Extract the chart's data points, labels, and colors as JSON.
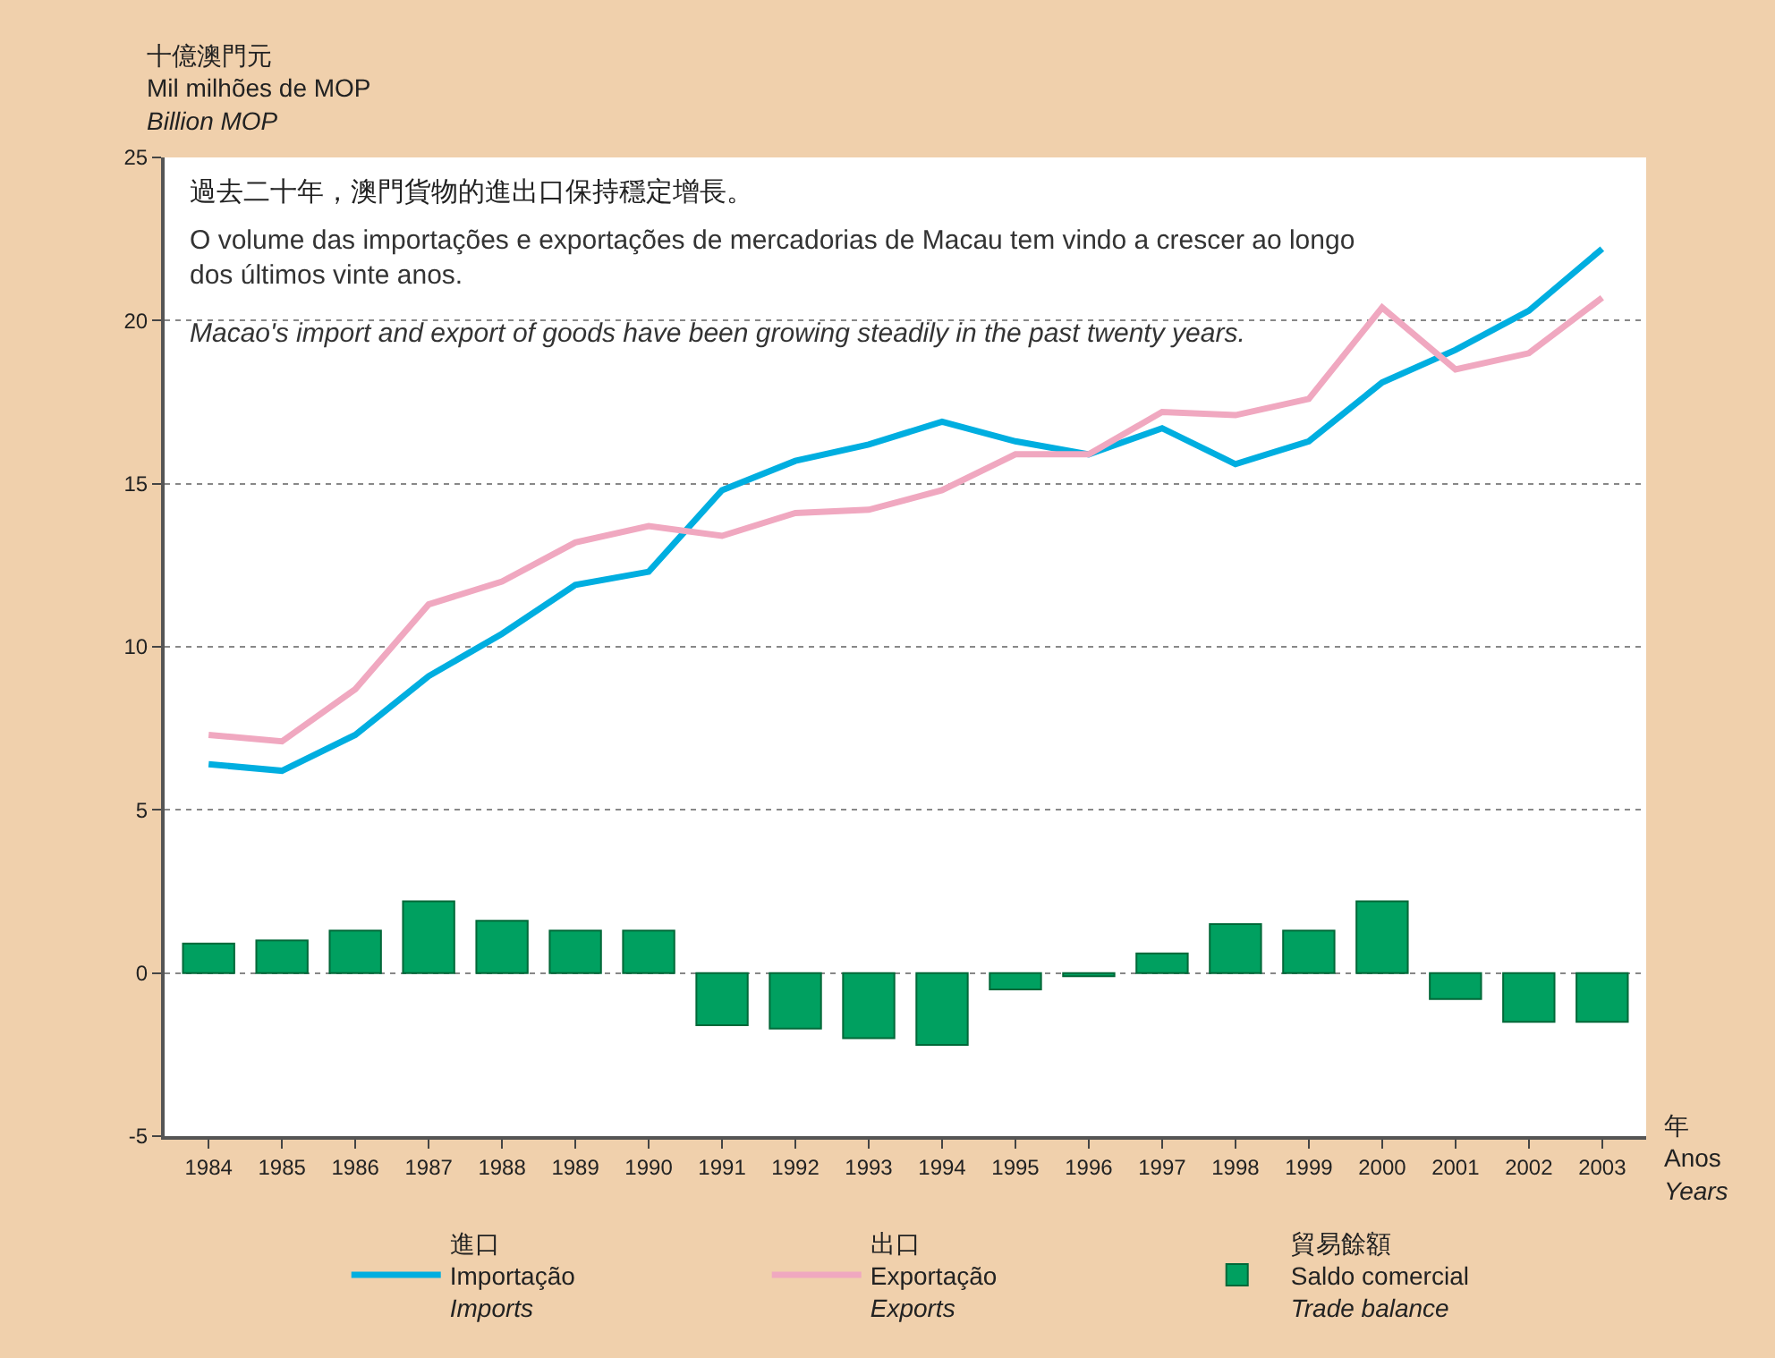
{
  "chart_data": {
    "type": "line",
    "title": "過去二十年，澳門貨物的進出口保持穩定增長。",
    "subtitle": "O volume das importações e exportações de mercadorias de Macau tem vindo a crescer ao longo dos últimos vinte anos.",
    "annotations": [
      "Macao's import and export of goods have been growing steadily in the past twenty years."
    ],
    "ylabel": "十億澳門元\nMil milhões de MOP\nBillion MOP",
    "xlabel": "年\nAnos\nYears",
    "categories": [
      "1984",
      "1985",
      "1986",
      "1987",
      "1988",
      "1989",
      "1990",
      "1991",
      "1992",
      "1993",
      "1994",
      "1995",
      "1996",
      "1997",
      "1998",
      "1999",
      "2000",
      "2001",
      "2002",
      "2003"
    ],
    "series": [
      {
        "name": "進口\nImportação\nImports",
        "color": "#00aee0",
        "values": [
          6.4,
          6.2,
          7.3,
          9.1,
          10.4,
          11.9,
          12.3,
          14.8,
          15.7,
          16.2,
          16.9,
          16.3,
          15.9,
          16.7,
          15.6,
          16.3,
          18.1,
          19.1,
          20.3,
          22.2
        ]
      },
      {
        "name": "出口\nExportação\nExports",
        "color": "#f0a8c0",
        "values": [
          7.3,
          7.1,
          8.7,
          11.3,
          12.0,
          13.2,
          13.7,
          13.4,
          14.1,
          14.2,
          14.8,
          15.9,
          15.9,
          17.2,
          17.1,
          17.6,
          20.4,
          18.5,
          19.0,
          20.7
        ]
      },
      {
        "name": "貿易餘額\nSaldo comercial\nTrade balance",
        "type": "bar",
        "color": "#00a060",
        "values": [
          0.9,
          1.0,
          1.3,
          2.2,
          1.6,
          1.3,
          1.3,
          -1.6,
          -1.7,
          -2.0,
          -2.2,
          -0.5,
          -0.1,
          0.6,
          1.5,
          1.3,
          2.2,
          -0.8,
          -1.5,
          -1.5
        ]
      }
    ],
    "ylim": [
      -5,
      25
    ],
    "yticks": [
      -5,
      0,
      5,
      10,
      15,
      20,
      25
    ],
    "grid": "y",
    "legend": "bottom",
    "line_style": "solid",
    "marker": "none"
  }
}
